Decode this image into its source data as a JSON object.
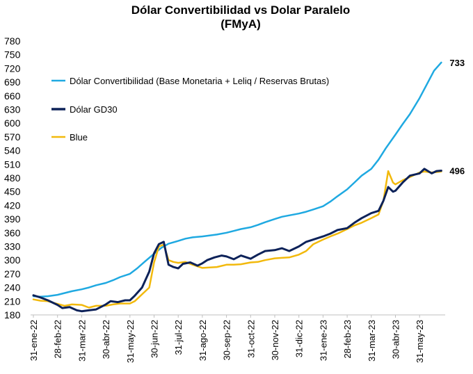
{
  "chart_data": {
    "type": "line",
    "title": "Dólar Convertibilidad vs Dolar Paralelo",
    "subtitle": "(FMyA)",
    "ylim": [
      180,
      780
    ],
    "yticks": [
      180,
      210,
      240,
      270,
      300,
      330,
      360,
      390,
      420,
      450,
      480,
      510,
      540,
      570,
      600,
      630,
      660,
      690,
      720,
      750,
      780
    ],
    "x_tick_labels": [
      "31-ene-22",
      "28-feb-22",
      "31-mar-22",
      "30-abr-22",
      "31-may-22",
      "30-jun-22",
      "31-jul-22",
      "31-ago-22",
      "30-sep-22",
      "31-oct-22",
      "30-nov-22",
      "31-dic-22",
      "31-ene-23",
      "28-feb-23",
      "31-mar-23",
      "30-abr-23",
      "31-may-23"
    ],
    "grid": false,
    "legend_position": "top-left",
    "series": [
      {
        "name": "Dólar Convertibilidad (Base Monetaria + Leliq / Reservas  Brutas)",
        "color": "#1FA9E1",
        "end_label": "733",
        "points": [
          [
            0,
            221
          ],
          [
            0.3,
            220
          ],
          [
            0.6,
            221
          ],
          [
            1,
            224
          ],
          [
            1.3,
            228
          ],
          [
            1.6,
            232
          ],
          [
            2,
            236
          ],
          [
            2.3,
            240
          ],
          [
            2.6,
            245
          ],
          [
            3,
            250
          ],
          [
            3.3,
            256
          ],
          [
            3.6,
            263
          ],
          [
            4,
            270
          ],
          [
            4.3,
            282
          ],
          [
            4.6,
            296
          ],
          [
            5,
            314
          ],
          [
            5.3,
            327
          ],
          [
            5.6,
            336
          ],
          [
            6,
            342
          ],
          [
            6.3,
            347
          ],
          [
            6.6,
            350
          ],
          [
            7,
            352
          ],
          [
            7.3,
            354
          ],
          [
            7.6,
            356
          ],
          [
            8,
            360
          ],
          [
            8.3,
            364
          ],
          [
            8.6,
            368
          ],
          [
            9,
            372
          ],
          [
            9.3,
            377
          ],
          [
            9.6,
            383
          ],
          [
            10,
            390
          ],
          [
            10.3,
            395
          ],
          [
            10.6,
            398
          ],
          [
            11,
            402
          ],
          [
            11.3,
            406
          ],
          [
            11.6,
            411
          ],
          [
            12,
            418
          ],
          [
            12.3,
            428
          ],
          [
            12.6,
            440
          ],
          [
            13,
            455
          ],
          [
            13.3,
            470
          ],
          [
            13.6,
            485
          ],
          [
            14,
            500
          ],
          [
            14.3,
            520
          ],
          [
            14.6,
            545
          ],
          [
            15,
            575
          ],
          [
            15.3,
            598
          ],
          [
            15.6,
            620
          ],
          [
            16,
            655
          ],
          [
            16.3,
            685
          ],
          [
            16.6,
            715
          ],
          [
            16.9,
            733
          ]
        ]
      },
      {
        "name": "Dólar GD30",
        "color": "#0D2259",
        "end_label": "496",
        "points": [
          [
            0,
            223
          ],
          [
            0.3,
            218
          ],
          [
            0.6,
            212
          ],
          [
            1,
            202
          ],
          [
            1.2,
            195
          ],
          [
            1.5,
            197
          ],
          [
            1.8,
            190
          ],
          [
            2,
            188
          ],
          [
            2.3,
            190
          ],
          [
            2.6,
            192
          ],
          [
            3,
            203
          ],
          [
            3.2,
            210
          ],
          [
            3.5,
            208
          ],
          [
            3.8,
            212
          ],
          [
            4,
            212
          ],
          [
            4.2,
            222
          ],
          [
            4.5,
            240
          ],
          [
            4.8,
            275
          ],
          [
            5,
            315
          ],
          [
            5.2,
            335
          ],
          [
            5.4,
            340
          ],
          [
            5.6,
            290
          ],
          [
            5.8,
            285
          ],
          [
            6,
            282
          ],
          [
            6.2,
            292
          ],
          [
            6.5,
            295
          ],
          [
            6.8,
            288
          ],
          [
            7,
            293
          ],
          [
            7.2,
            300
          ],
          [
            7.5,
            306
          ],
          [
            7.8,
            310
          ],
          [
            8,
            308
          ],
          [
            8.3,
            302
          ],
          [
            8.6,
            310
          ],
          [
            9,
            303
          ],
          [
            9.3,
            312
          ],
          [
            9.6,
            320
          ],
          [
            10,
            322
          ],
          [
            10.3,
            326
          ],
          [
            10.6,
            320
          ],
          [
            11,
            330
          ],
          [
            11.3,
            340
          ],
          [
            11.6,
            345
          ],
          [
            12,
            352
          ],
          [
            12.3,
            358
          ],
          [
            12.6,
            366
          ],
          [
            13,
            370
          ],
          [
            13.3,
            382
          ],
          [
            13.6,
            392
          ],
          [
            14,
            403
          ],
          [
            14.3,
            408
          ],
          [
            14.5,
            430
          ],
          [
            14.7,
            460
          ],
          [
            14.9,
            450
          ],
          [
            15,
            452
          ],
          [
            15.3,
            470
          ],
          [
            15.6,
            485
          ],
          [
            16,
            490
          ],
          [
            16.2,
            500
          ],
          [
            16.5,
            490
          ],
          [
            16.7,
            495
          ],
          [
            16.9,
            496
          ]
        ]
      },
      {
        "name": "Blue",
        "color": "#F2B90C",
        "end_label": "",
        "points": [
          [
            0,
            214
          ],
          [
            0.3,
            211
          ],
          [
            0.6,
            210
          ],
          [
            1,
            204
          ],
          [
            1.3,
            200
          ],
          [
            1.6,
            203
          ],
          [
            2,
            202
          ],
          [
            2.3,
            196
          ],
          [
            2.6,
            200
          ],
          [
            3,
            200
          ],
          [
            3.3,
            203
          ],
          [
            3.6,
            205
          ],
          [
            4,
            205
          ],
          [
            4.2,
            210
          ],
          [
            4.5,
            225
          ],
          [
            4.8,
            240
          ],
          [
            5,
            295
          ],
          [
            5.2,
            330
          ],
          [
            5.4,
            334
          ],
          [
            5.6,
            300
          ],
          [
            5.8,
            296
          ],
          [
            6,
            294
          ],
          [
            6.3,
            296
          ],
          [
            6.6,
            290
          ],
          [
            7,
            283
          ],
          [
            7.3,
            284
          ],
          [
            7.6,
            285
          ],
          [
            8,
            290
          ],
          [
            8.3,
            290
          ],
          [
            8.6,
            291
          ],
          [
            9,
            295
          ],
          [
            9.3,
            296
          ],
          [
            9.6,
            300
          ],
          [
            10,
            304
          ],
          [
            10.3,
            305
          ],
          [
            10.6,
            306
          ],
          [
            11,
            312
          ],
          [
            11.3,
            320
          ],
          [
            11.6,
            335
          ],
          [
            12,
            345
          ],
          [
            12.3,
            352
          ],
          [
            12.6,
            358
          ],
          [
            13,
            368
          ],
          [
            13.3,
            376
          ],
          [
            13.6,
            382
          ],
          [
            14,
            392
          ],
          [
            14.3,
            400
          ],
          [
            14.5,
            430
          ],
          [
            14.7,
            495
          ],
          [
            14.9,
            470
          ],
          [
            15,
            466
          ],
          [
            15.3,
            475
          ],
          [
            15.6,
            482
          ],
          [
            16,
            492
          ],
          [
            16.2,
            494
          ],
          [
            16.5,
            492
          ],
          [
            16.7,
            493
          ],
          [
            16.9,
            494
          ]
        ]
      }
    ]
  }
}
